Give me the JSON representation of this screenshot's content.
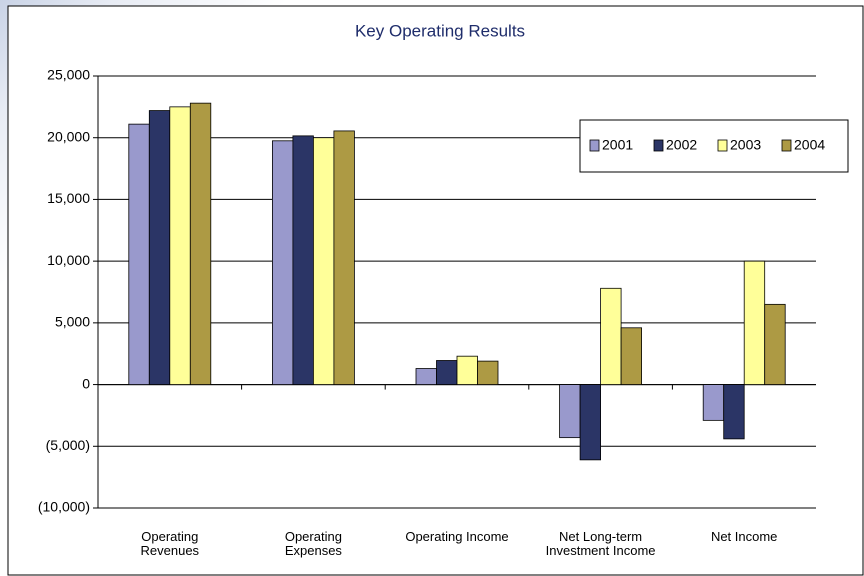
{
  "chart_data": {
    "type": "bar",
    "title": "Key Operating Results",
    "categories": [
      "Operating Revenues",
      "Operating Expenses",
      "Operating Income",
      "Net Long-term Investment Income",
      "Net Income"
    ],
    "series": [
      {
        "name": "2001",
        "color": "#9999cc",
        "values": [
          21100,
          19750,
          1300,
          -4300,
          -2900
        ]
      },
      {
        "name": "2002",
        "color": "#2b3566",
        "values": [
          22200,
          20150,
          1950,
          -6100,
          -4400
        ]
      },
      {
        "name": "2003",
        "color": "#ffff99",
        "values": [
          22500,
          20000,
          2300,
          7800,
          10000
        ]
      },
      {
        "name": "2004",
        "color": "#ad9a44",
        "values": [
          22800,
          20550,
          1900,
          4600,
          6500
        ]
      }
    ],
    "ylim": [
      -10000,
      25000
    ],
    "yticks": [
      {
        "value": -10000,
        "label": "(10,000)"
      },
      {
        "value": -5000,
        "label": "(5,000)"
      },
      0,
      {
        "value": 5000,
        "label": "5,000"
      },
      {
        "value": 10000,
        "label": "10,000"
      },
      {
        "value": 15000,
        "label": "15,000"
      },
      {
        "value": 20000,
        "label": "20,000"
      },
      {
        "value": 25000,
        "label": "25,000"
      }
    ],
    "grid": true,
    "legend": "upper right"
  }
}
